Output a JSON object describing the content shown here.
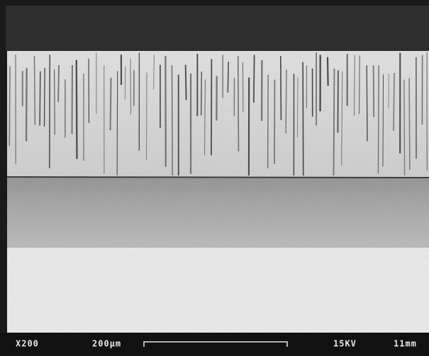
{
  "info_bar": {
    "magnification": "X200",
    "scale_label": "200μm",
    "voltage": "15KV",
    "working_distance": "11mm"
  }
}
